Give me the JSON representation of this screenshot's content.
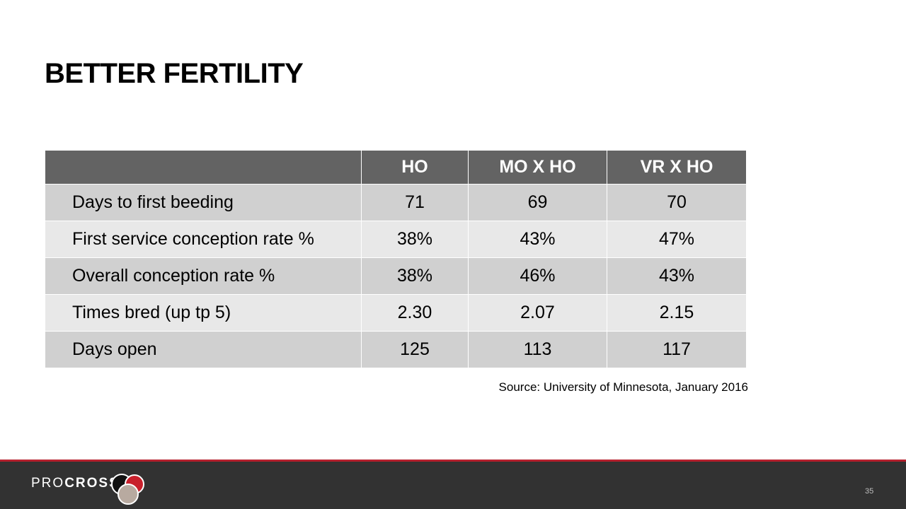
{
  "slide": {
    "title": "BETTER FERTILITY"
  },
  "table": {
    "headers": [
      "",
      "HO",
      "MO X HO",
      "VR X HO"
    ],
    "rows": [
      [
        "Days to first beeding",
        "71",
        "69",
        "70"
      ],
      [
        "First service conception rate %",
        "38%",
        "43%",
        "47%"
      ],
      [
        "Overall conception rate %",
        "38%",
        "46%",
        "43%"
      ],
      [
        "Times bred (up tp 5)",
        "2.30",
        "2.07",
        "2.15"
      ],
      [
        "Days open",
        "125",
        "113",
        "117"
      ]
    ]
  },
  "source": "Source: University of Minnesota, January 2016",
  "footer": {
    "brand_light": "PRO",
    "brand_bold": "CROSS",
    "page_number": "35",
    "logo_icon": "procross-logo-icon"
  },
  "colors": {
    "header_bg": "#636363",
    "row_dark": "#d0d0d0",
    "row_light": "#e8e8e8",
    "footer_bg": "#323232",
    "accent_red": "#b5202e"
  }
}
